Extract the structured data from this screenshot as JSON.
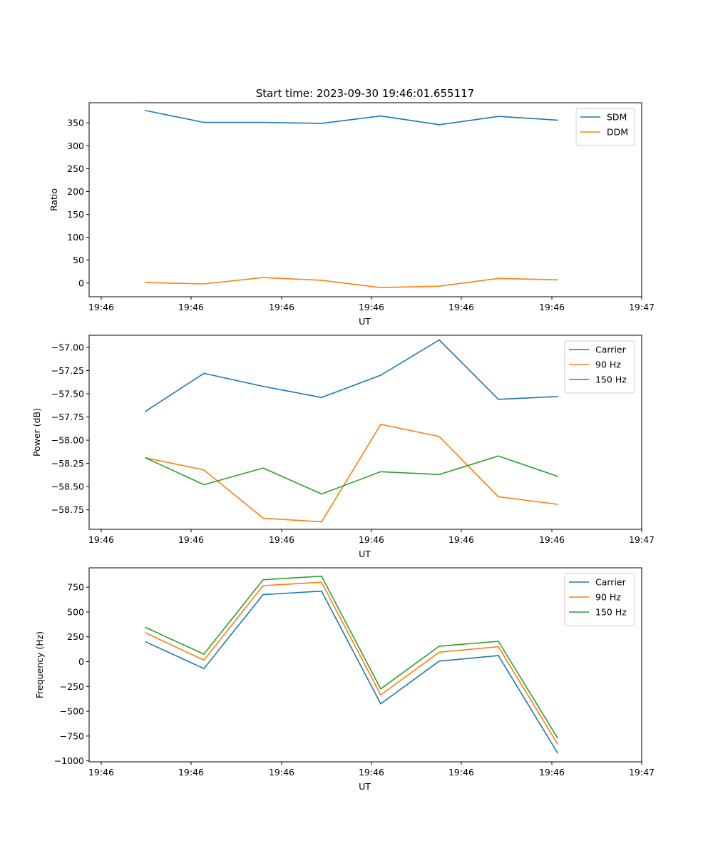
{
  "title": "Start time: 2023-09-30 19:46:01.655117",
  "colors": {
    "blue": "#1f77b4",
    "orange": "#ff7f0e",
    "green": "#2ca02c"
  },
  "chart_data": [
    {
      "type": "line",
      "xlabel": "UT",
      "ylabel": "Ratio",
      "x_ticks": [
        "19:46",
        "19:46",
        "19:46",
        "19:46",
        "19:46",
        "19:46",
        "19:46"
      ],
      "x_tick_last": "19:47",
      "y_ticks": [
        "0",
        "50",
        "100",
        "150",
        "200",
        "250",
        "300",
        "350"
      ],
      "ylim": [
        -30,
        394
      ],
      "legend": "top-right",
      "series": [
        {
          "name": "SDM",
          "color": "#1f77b4",
          "values": [
            377,
            351,
            351,
            349,
            365,
            346,
            364,
            356
          ]
        },
        {
          "name": "DDM",
          "color": "#ff7f0e",
          "values": [
            1,
            -2,
            12,
            6,
            -10,
            -7,
            10,
            7
          ]
        }
      ]
    },
    {
      "type": "line",
      "xlabel": "UT",
      "ylabel": "Power (dB)",
      "x_ticks": [
        "19:46",
        "19:46",
        "19:46",
        "19:46",
        "19:46",
        "19:46",
        "19:46"
      ],
      "x_tick_last": "19:47",
      "y_ticks": [
        "−58.75",
        "−58.50",
        "−58.25",
        "−58.00",
        "−57.75",
        "−57.50",
        "−57.25",
        "−57.00"
      ],
      "ylim": [
        -58.96,
        -56.87
      ],
      "legend": "top-right",
      "series": [
        {
          "name": "Carrier",
          "color": "#1f77b4",
          "values": [
            -57.69,
            -57.28,
            -57.42,
            -57.54,
            -57.3,
            -56.92,
            -57.56,
            -57.53
          ]
        },
        {
          "name": "90 Hz",
          "color": "#ff7f0e",
          "values": [
            -58.19,
            -58.32,
            -58.84,
            -58.88,
            -57.83,
            -57.96,
            -58.61,
            -58.69
          ]
        },
        {
          "name": "150 Hz",
          "color": "#2ca02c",
          "values": [
            -58.19,
            -58.48,
            -58.3,
            -58.58,
            -58.34,
            -58.37,
            -58.17,
            -58.39
          ]
        }
      ]
    },
    {
      "type": "line",
      "xlabel": "UT",
      "ylabel": "Frequency (Hz)",
      "x_ticks": [
        "19:46",
        "19:46",
        "19:46",
        "19:46",
        "19:46",
        "19:46",
        "19:46"
      ],
      "x_tick_last": "19:47",
      "y_ticks": [
        "−1000",
        "−750",
        "−500",
        "−250",
        "0",
        "250",
        "500",
        "750"
      ],
      "ylim": [
        -1010,
        945
      ],
      "legend": "top-right",
      "series": [
        {
          "name": "Carrier",
          "color": "#1f77b4",
          "values": [
            200,
            -70,
            675,
            710,
            -425,
            5,
            60,
            -920
          ]
        },
        {
          "name": "90 Hz",
          "color": "#ff7f0e",
          "values": [
            290,
            15,
            765,
            800,
            -335,
            95,
            150,
            -830
          ]
        },
        {
          "name": "150 Hz",
          "color": "#2ca02c",
          "values": [
            345,
            75,
            825,
            860,
            -275,
            155,
            205,
            -770
          ]
        }
      ]
    }
  ]
}
